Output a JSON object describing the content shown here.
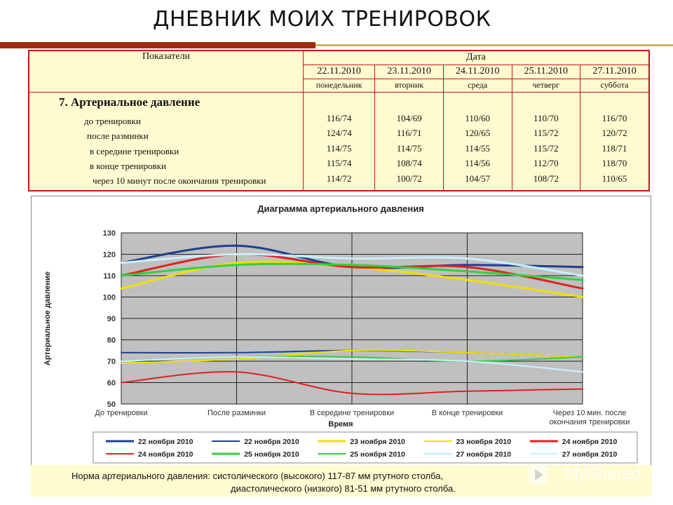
{
  "title": "ДНЕВНИК МОИХ ТРЕНИРОВОК",
  "table": {
    "col_indicators": "Показатели",
    "col_date": "Дата",
    "dates": [
      "22.11.2010",
      "23.11.2010",
      "24.11.2010",
      "25.11.2010",
      "27.11.2010"
    ],
    "days": [
      "понедельник",
      "вторник",
      "среда",
      "четверг",
      "суббота"
    ],
    "section": "7. Артериальное давление",
    "row_labels": [
      "до тренировки",
      "после разминки",
      "в середине тренировки",
      "в конце тренировки",
      "через 10 минут после окончания тренировки"
    ],
    "columns": [
      [
        "116/74",
        "124/74",
        "114/75",
        "115/74",
        "114/72"
      ],
      [
        "104/69",
        "116/71",
        "114/75",
        "108/74",
        "100/72"
      ],
      [
        "110/60",
        "120/65",
        "114/55",
        "114/56",
        "104/57"
      ],
      [
        "110/70",
        "115/72",
        "115/72",
        "112/70",
        "108/72"
      ],
      [
        "116/70",
        "120/72",
        "118/71",
        "118/70",
        "110/65"
      ]
    ]
  },
  "chart_data": {
    "type": "line",
    "title": "Диаграмма артериального давления",
    "xlabel": "Время",
    "ylabel": "Артериальное давление",
    "ylim": [
      50,
      130
    ],
    "yticks": [
      "50",
      "60",
      "70",
      "80",
      "90",
      "100",
      "110",
      "120",
      "130"
    ],
    "categories": [
      "До тренировки",
      "После разминки",
      "В середине тренировки",
      "В конце тренировки",
      "Через 10 мин.  после окончания тренировки"
    ],
    "smooth": true,
    "grid": true,
    "background": "#c0c0c0",
    "series": [
      {
        "name": "22 ноября 2010",
        "color": "#1f3f8f",
        "width": 3,
        "values": [
          116,
          124,
          114,
          115,
          114
        ]
      },
      {
        "name": "22 ноября 2010",
        "color": "#1f3f8f",
        "width": 2,
        "values": [
          74,
          74,
          75,
          74,
          72
        ]
      },
      {
        "name": "23 ноября 2010",
        "color": "#f0e000",
        "width": 3,
        "values": [
          104,
          116,
          114,
          108,
          100
        ]
      },
      {
        "name": "23 ноября 2010",
        "color": "#f0e000",
        "width": 2,
        "values": [
          69,
          71,
          75,
          74,
          72
        ]
      },
      {
        "name": "24 ноября 2010",
        "color": "#e02020",
        "width": 3,
        "values": [
          110,
          120,
          114,
          114,
          104
        ]
      },
      {
        "name": "24 ноября 2010",
        "color": "#e02020",
        "width": 2,
        "values": [
          60,
          65,
          55,
          56,
          57
        ]
      },
      {
        "name": "25 ноября 2010",
        "color": "#30d040",
        "width": 3,
        "values": [
          110,
          115,
          115,
          112,
          108
        ]
      },
      {
        "name": "25 ноября 2010",
        "color": "#30d040",
        "width": 2,
        "values": [
          70,
          72,
          72,
          70,
          72
        ]
      },
      {
        "name": "27 ноября 2010",
        "color": "#c8f0ff",
        "width": 3,
        "values": [
          116,
          120,
          118,
          118,
          110
        ]
      },
      {
        "name": "27 ноября 2010",
        "color": "#c8f0ff",
        "width": 2,
        "values": [
          70,
          72,
          71,
          70,
          65
        ]
      }
    ]
  },
  "note": {
    "line1": "Норма артериального давления: систолического (высокого) 117-87 мм ртутного столба,",
    "line2": "диастолического (низкого)  81-51 мм ртутного столба."
  },
  "watermark": "MyShared"
}
